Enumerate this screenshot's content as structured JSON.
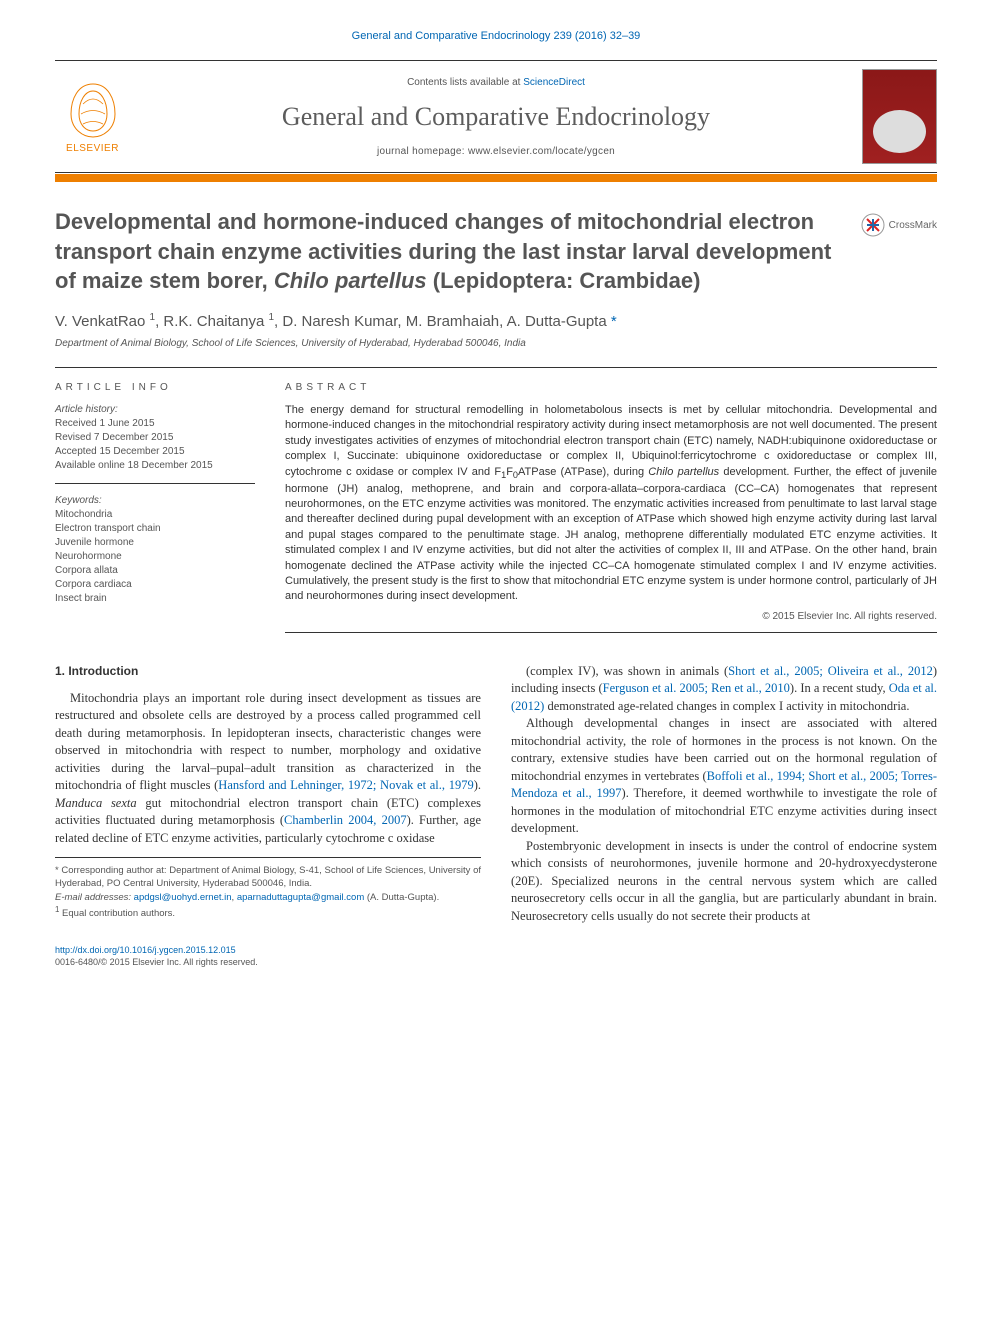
{
  "top_citation": "General and Comparative Endocrinology 239 (2016) 32–39",
  "header": {
    "contents_prefix": "Contents lists available at ",
    "contents_link": "ScienceDirect",
    "journal_name": "General and Comparative Endocrinology",
    "homepage_prefix": "journal homepage: ",
    "homepage_url": "www.elsevier.com/locate/ygcen",
    "elsevier_label": "ELSEVIER"
  },
  "crossmark_label": "CrossMark",
  "title_html": "Developmental and hormone-induced changes of mitochondrial electron transport chain enzyme activities during the last instar larval development of maize stem borer, <em>Chilo partellus</em> (Lepidoptera: Crambidae)",
  "authors_html": "V. VenkatRao <sup>1</sup>, R.K. Chaitanya <sup>1</sup>, D. Naresh Kumar, M. Bramhaiah, A. Dutta-Gupta <span class='corr'>*</span>",
  "affiliation": "Department of Animal Biology, School of Life Sciences, University of Hyderabad, Hyderabad 500046, India",
  "info": {
    "heading": "ARTICLE INFO",
    "history_label": "Article history:",
    "history": [
      "Received 1 June 2015",
      "Revised 7 December 2015",
      "Accepted 15 December 2015",
      "Available online 18 December 2015"
    ],
    "keywords_label": "Keywords:",
    "keywords": [
      "Mitochondria",
      "Electron transport chain",
      "Juvenile hormone",
      "Neurohormone",
      "Corpora allata",
      "Corpora cardiaca",
      "Insect brain"
    ]
  },
  "abstract": {
    "heading": "ABSTRACT",
    "text_html": "The energy demand for structural remodelling in holometabolous insects is met by cellular mitochondria. Developmental and hormone-induced changes in the mitochondrial respiratory activity during insect metamorphosis are not well documented. The present study investigates activities of enzymes of mitochondrial electron transport chain (ETC) namely, NADH:ubiquinone oxidoreductase or complex I, Succinate: ubiquinone oxidoreductase or complex II, Ubiquinol:ferricytochrome c oxidoreductase or complex III, cytochrome c oxidase or complex IV and F<sub>1</sub>F<sub>0</sub>ATPase (ATPase), during <em>Chilo partellus</em> development. Further, the effect of juvenile hormone (JH) analog, methoprene, and brain and corpora-allata–corpora-cardiaca (CC–CA) homogenates that represent neurohormones, on the ETC enzyme activities was monitored. The enzymatic activities increased from penultimate to last larval stage and thereafter declined during pupal development with an exception of ATPase which showed high enzyme activity during last larval and pupal stages compared to the penultimate stage. JH analog, methoprene differentially modulated ETC enzyme activities. It stimulated complex I and IV enzyme activities, but did not alter the activities of complex II, III and ATPase. On the other hand, brain homogenate declined the ATPase activity while the injected CC–CA homogenate stimulated complex I and IV enzyme activities. Cumulatively, the present study is the first to show that mitochondrial ETC enzyme system is under hormone control, particularly of JH and neurohormones during insect development.",
    "copyright": "© 2015 Elsevier Inc. All rights reserved."
  },
  "intro": {
    "heading": "1. Introduction",
    "p1_html": "Mitochondria plays an important role during insect development as tissues are restructured and obsolete cells are destroyed by a process called programmed cell death during metamorphosis. In lepidopteran insects, characteristic changes were observed in mitochondria with respect to number, morphology and oxidative activities during the larval–pupal–adult transition as characterized in the mitochondria of flight muscles (<span class='ref'>Hansford and Lehninger, 1972; Novak et al., 1979</span>). <em>Manduca sexta</em> gut mitochondrial electron transport chain (ETC) complexes activities fluctuated during metamorphosis (<span class='ref'>Chamberlin 2004, 2007</span>). Further, age related decline of ETC enzyme activities, particularly cytochrome c oxidase",
    "p2_html": "(complex IV), was shown in animals (<span class='ref'>Short et al., 2005; Oliveira et al., 2012</span>) including insects (<span class='ref'>Ferguson et al. 2005; Ren et al., 2010</span>). In a recent study, <span class='ref'>Oda et al. (2012)</span> demonstrated age-related changes in complex I activity in mitochondria.",
    "p3_html": "Although developmental changes in insect are associated with altered mitochondrial activity, the role of hormones in the process is not known. On the contrary, extensive studies have been carried out on the hormonal regulation of mitochondrial enzymes in vertebrates (<span class='ref'>Boffoli et al., 1994; Short et al., 2005; Torres-Mendoza et al., 1997</span>). Therefore, it deemed worthwhile to investigate the role of hormones in the modulation of mitochondrial ETC enzyme activities during insect development.",
    "p4_html": "Postembryonic development in insects is under the control of endocrine system which consists of neurohormones, juvenile hormone and 20-hydroxyecdysterone (20E). Specialized neurons in the central nervous system which are called neurosecretory cells occur in all the ganglia, but are particularly abundant in brain. Neurosecretory cells usually do not secrete their products at"
  },
  "footnotes": {
    "corr_html": "* Corresponding author at: Department of Animal Biology, S-41, School of Life Sciences, University of Hyderabad, PO Central University, Hyderabad 500046, India.",
    "email_label": "E-mail addresses:",
    "email1": "apdgsl@uohyd.ernet.in",
    "email2": "aparnaduttagupta@gmail.com",
    "email_suffix": "(A. Dutta-Gupta).",
    "equal": "Equal contribution authors.",
    "equal_sup": "1"
  },
  "bottom": {
    "doi": "http://dx.doi.org/10.1016/j.ygcen.2015.12.015",
    "issn_line": "0016-6480/© 2015 Elsevier Inc. All rights reserved."
  },
  "colors": {
    "link": "#0066b3",
    "orange": "#ee7f00",
    "text_muted": "#555555"
  }
}
